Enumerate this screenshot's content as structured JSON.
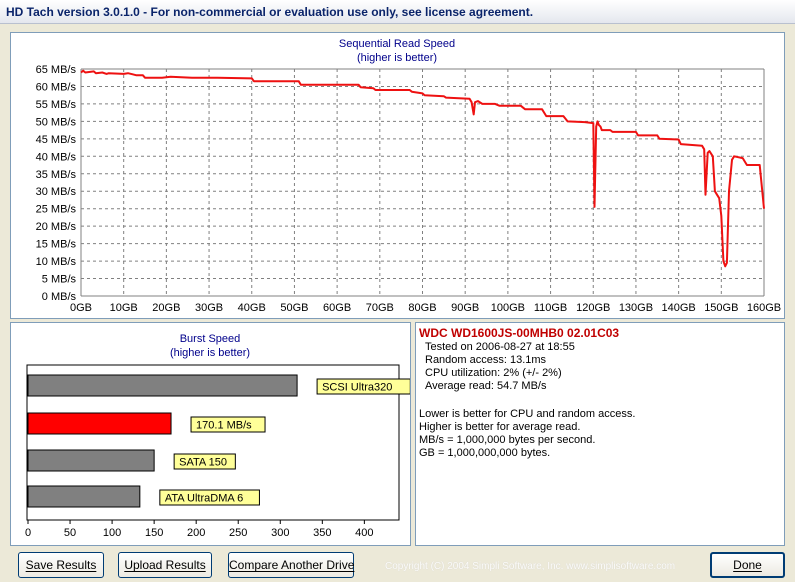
{
  "window": {
    "title": "HD Tach version 3.0.1.0  - For non-commercial or evaluation use only, see license agreement."
  },
  "colors": {
    "title_text": "#0a246a",
    "chart_title": "#00008b",
    "read_line": "#ee1111",
    "grid": "#808080",
    "bar_gray": "#808080",
    "bar_highlight": "#ff0000",
    "label_bg": "#ffff99",
    "drive_name": "#c00000"
  },
  "chart_data": [
    {
      "type": "line",
      "title": "Sequential Read Speed",
      "subtitle": "(higher is better)",
      "x_ticks": [
        "0GB",
        "10GB",
        "20GB",
        "30GB",
        "40GB",
        "50GB",
        "60GB",
        "70GB",
        "80GB",
        "90GB",
        "100GB",
        "110GB",
        "120GB",
        "130GB",
        "140GB",
        "150GB",
        "160GB"
      ],
      "y_ticks": [
        "0 MB/s",
        "5 MB/s",
        "10 MB/s",
        "15 MB/s",
        "20 MB/s",
        "25 MB/s",
        "30 MB/s",
        "35 MB/s",
        "40 MB/s",
        "45 MB/s",
        "50 MB/s",
        "55 MB/s",
        "60 MB/s",
        "65 MB/s"
      ],
      "xlim": [
        0,
        160
      ],
      "ylim": [
        0,
        65
      ],
      "grid": true,
      "series": [
        {
          "x": [
            0,
            0.5,
            1,
            3,
            3.5,
            5,
            6,
            6.5,
            10,
            11,
            12,
            13,
            14.5,
            15,
            19,
            21,
            26,
            32,
            40,
            40.5,
            51,
            51.5,
            65,
            65.5,
            68.5,
            69,
            77,
            77.5,
            80,
            80.5,
            85,
            85.5,
            91,
            91.5,
            92,
            92.3,
            93,
            94,
            97,
            98,
            103,
            104,
            108,
            109,
            113,
            114,
            118,
            120,
            120.3,
            120.7,
            121,
            121.3,
            121.7,
            122,
            124,
            124.5,
            130,
            130.5,
            135,
            135.5,
            140,
            140.5,
            145.5,
            146,
            146.3,
            146.8,
            147.2,
            148,
            148.5,
            149,
            149.5,
            150,
            150.5,
            150.9,
            151.3,
            151.8,
            152.5,
            153,
            155,
            156,
            159,
            160
          ],
          "y": [
            64,
            64.5,
            64,
            64.3,
            63.8,
            64,
            63.6,
            63.8,
            63.6,
            63.8,
            63.5,
            63.2,
            63.2,
            62.5,
            62.5,
            62.8,
            62.5,
            62.5,
            62.3,
            61.5,
            61.5,
            60.5,
            60.5,
            59.8,
            59.5,
            59,
            59,
            58.5,
            58,
            57.5,
            57.2,
            56.8,
            56.5,
            55.5,
            52,
            55.5,
            55.8,
            55,
            55,
            54.5,
            54.5,
            53.5,
            53.5,
            51.5,
            51.5,
            50,
            49.8,
            49.5,
            25.5,
            48.5,
            50,
            49,
            48.5,
            47.5,
            47.5,
            47,
            47,
            46,
            46,
            45,
            44.8,
            43.5,
            43,
            42,
            29,
            41,
            41.5,
            40,
            30,
            29,
            28,
            23,
            10,
            8.5,
            9.5,
            30,
            39,
            40,
            39.5,
            37.5,
            37.5,
            25
          ]
        }
      ]
    },
    {
      "type": "bar",
      "title": "Burst Speed",
      "subtitle": "(higher is better)",
      "x_ticks": [
        "0",
        "50",
        "100",
        "150",
        "200",
        "250",
        "300",
        "350",
        "400"
      ],
      "xlim": [
        0,
        440
      ],
      "categories": [
        "SCSI Ultra320",
        "170.1 MB/s",
        "SATA 150",
        "ATA UltraDMA 6"
      ],
      "values": [
        320,
        170.1,
        150,
        133
      ],
      "highlight_index": 1
    }
  ],
  "info": {
    "drive_name": "WDC WD1600JS-00MHB0 02.01C03",
    "stats": [
      "Tested on 2006-08-27 at 18:55",
      "Random access: 13.1ms",
      "CPU utilization: 2% (+/- 2%)",
      "Average read: 54.7 MB/s"
    ],
    "notes": [
      "Lower is better for CPU and random access.",
      "Higher is better for average read.",
      "MB/s = 1,000,000 bytes per second.",
      "GB = 1,000,000,000 bytes."
    ]
  },
  "buttons": {
    "save": "Save Results",
    "upload": "Upload Results",
    "compare": "Compare Another Drive",
    "done": "Done"
  },
  "copyright": "Copyright (C) 2004 Simpli Software, Inc. www.simplisoftware.com"
}
